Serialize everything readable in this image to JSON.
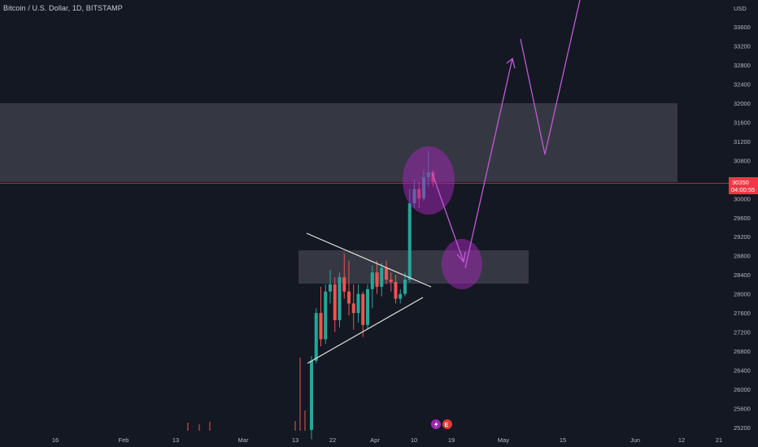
{
  "header": {
    "symbol_title": "Bitcoin / U.S. Dollar, 1D, BITSTAMP"
  },
  "price_axis": {
    "currency": "USD",
    "current_price_label": "30350",
    "countdown_label": "04:00:55"
  },
  "event_icons": [
    {
      "icon": "lightning-icon",
      "color": "#9c27b0"
    },
    {
      "icon": "earnings-icon",
      "color": "#e53935"
    }
  ],
  "colors": {
    "background": "#141823",
    "up_candle": "#26a69a",
    "down_candle": "#ef5350",
    "zone_fill": "#3b3e48",
    "projection": "#c05ad6",
    "trendline": "#e0e0e0",
    "price_tag": "#f23645",
    "price_line": "#9b3340"
  },
  "chart_data": {
    "type": "candlestick",
    "title": "Bitcoin / U.S. Dollar, 1D, BITSTAMP",
    "ylabel": "USD",
    "ylim": [
      25000,
      34400
    ],
    "y_ticks": [
      25200,
      25600,
      26000,
      26400,
      26800,
      27200,
      27600,
      28000,
      28400,
      28800,
      29200,
      29600,
      30000,
      30400,
      30800,
      31200,
      31600,
      32000,
      32400,
      32800,
      33200,
      33600
    ],
    "x_tick_labels": [
      "16",
      "Feb",
      "13",
      "Mar",
      "13",
      "22",
      "Apr",
      "10",
      "19",
      "May",
      "15",
      "Jun",
      "12",
      "21"
    ],
    "last_price": 30350,
    "candles": [
      {
        "o": 25150,
        "h": 26700,
        "l": 24950,
        "c": 26600
      },
      {
        "o": 26600,
        "h": 27700,
        "l": 26550,
        "c": 27600
      },
      {
        "o": 27600,
        "h": 28150,
        "l": 26900,
        "c": 27050
      },
      {
        "o": 27050,
        "h": 28200,
        "l": 26950,
        "c": 28050
      },
      {
        "o": 28050,
        "h": 28500,
        "l": 27800,
        "c": 28200
      },
      {
        "o": 28200,
        "h": 28350,
        "l": 27200,
        "c": 27450
      },
      {
        "o": 27450,
        "h": 28450,
        "l": 27300,
        "c": 28350
      },
      {
        "o": 28350,
        "h": 28850,
        "l": 27900,
        "c": 28050
      },
      {
        "o": 28050,
        "h": 28700,
        "l": 27550,
        "c": 27800
      },
      {
        "o": 27800,
        "h": 28200,
        "l": 27250,
        "c": 27600
      },
      {
        "o": 27600,
        "h": 28200,
        "l": 27400,
        "c": 28000
      },
      {
        "o": 28000,
        "h": 28050,
        "l": 27100,
        "c": 27350
      },
      {
        "o": 27350,
        "h": 28200,
        "l": 27250,
        "c": 28100
      },
      {
        "o": 28100,
        "h": 28600,
        "l": 27700,
        "c": 28450
      },
      {
        "o": 28450,
        "h": 28700,
        "l": 28000,
        "c": 28150
      },
      {
        "o": 28150,
        "h": 28650,
        "l": 27950,
        "c": 28550
      },
      {
        "o": 28550,
        "h": 28700,
        "l": 28200,
        "c": 28300
      },
      {
        "o": 28300,
        "h": 28450,
        "l": 28050,
        "c": 28250
      },
      {
        "o": 28250,
        "h": 28400,
        "l": 27800,
        "c": 27900
      },
      {
        "o": 27900,
        "h": 28100,
        "l": 27800,
        "c": 28000
      },
      {
        "o": 28000,
        "h": 28450,
        "l": 27950,
        "c": 28300
      },
      {
        "o": 28300,
        "h": 30200,
        "l": 28250,
        "c": 29900
      },
      {
        "o": 29900,
        "h": 30400,
        "l": 29800,
        "c": 30200
      },
      {
        "o": 30200,
        "h": 30350,
        "l": 29800,
        "c": 30000
      },
      {
        "o": 30000,
        "h": 30600,
        "l": 29950,
        "c": 30450
      },
      {
        "o": 30450,
        "h": 31000,
        "l": 30250,
        "c": 30550
      },
      {
        "o": 30550,
        "h": 30600,
        "l": 30250,
        "c": 30350
      }
    ]
  }
}
